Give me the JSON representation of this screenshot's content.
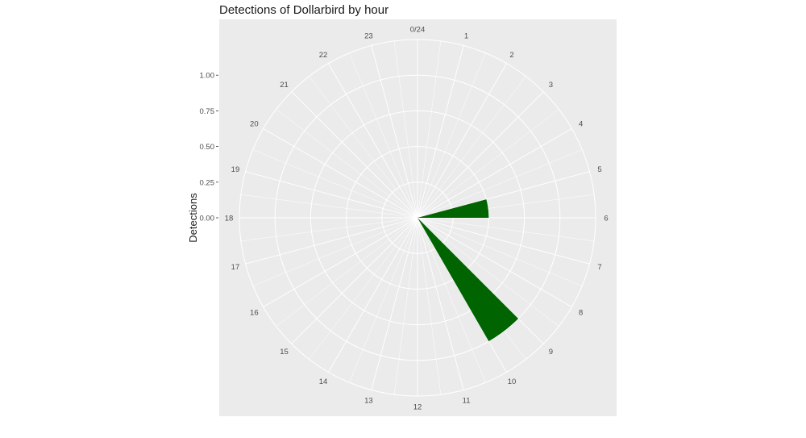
{
  "chart_data": {
    "type": "bar",
    "coord": "polar",
    "title": "Detections of Dollarbird by hour",
    "xlabel": "",
    "ylabel": "Detections",
    "hour_labels": [
      "0/24",
      "1",
      "2",
      "3",
      "4",
      "5",
      "6",
      "7",
      "8",
      "9",
      "10",
      "11",
      "12",
      "13",
      "14",
      "15",
      "16",
      "17",
      "18",
      "19",
      "20",
      "21",
      "22",
      "23"
    ],
    "y_ticks": [
      "0.00",
      "0.25",
      "0.50",
      "0.75",
      "1.00"
    ],
    "ylim": [
      0,
      1.25
    ],
    "hours": [
      6,
      10
    ],
    "values": [
      0.5,
      1.0
    ],
    "bar_width_hours": 1,
    "colors": {
      "bar": "#006400",
      "panel": "#ebebeb",
      "grid": "#ffffff"
    },
    "grid": true
  }
}
